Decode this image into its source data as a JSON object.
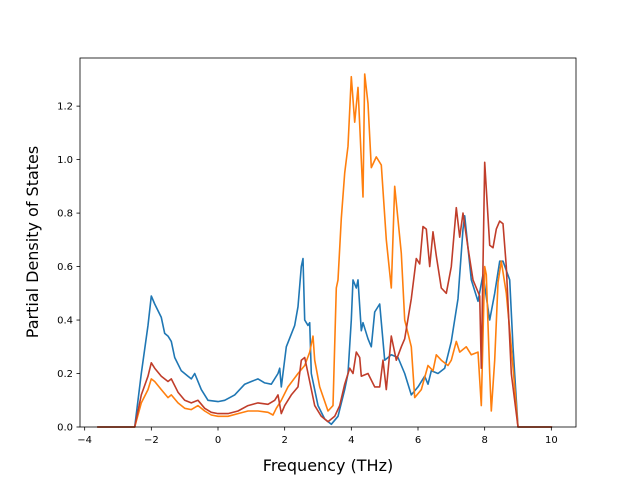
{
  "chart_data": {
    "type": "line",
    "title": "",
    "xlabel": "Frequency (THz)",
    "ylabel": "Partial Density of States",
    "xlim": [
      -4.14,
      10.74
    ],
    "ylim": [
      0.0,
      1.38
    ],
    "x_ticks": [
      -4,
      -2,
      0,
      2,
      4,
      6,
      8,
      10
    ],
    "y_ticks": [
      0.0,
      0.2,
      0.4,
      0.6,
      0.8,
      1.0,
      1.2
    ],
    "x_tick_labels": [
      "−4",
      "−2",
      "0",
      "2",
      "4",
      "6",
      "8",
      "10"
    ],
    "y_tick_labels": [
      "0.0",
      "0.2",
      "0.4",
      "0.6",
      "0.8",
      "1.0",
      "1.2"
    ],
    "grid": false,
    "legend": "none",
    "series": [
      {
        "color": "#1f77b4",
        "points": [
          [
            -3.6,
            0.0
          ],
          [
            -2.5,
            0.0
          ],
          [
            -2.3,
            0.2
          ],
          [
            -2.1,
            0.38
          ],
          [
            -2.0,
            0.49
          ],
          [
            -1.9,
            0.46
          ],
          [
            -1.7,
            0.41
          ],
          [
            -1.6,
            0.35
          ],
          [
            -1.5,
            0.34
          ],
          [
            -1.4,
            0.32
          ],
          [
            -1.3,
            0.26
          ],
          [
            -1.1,
            0.21
          ],
          [
            -0.9,
            0.19
          ],
          [
            -0.8,
            0.18
          ],
          [
            -0.7,
            0.2
          ],
          [
            -0.5,
            0.14
          ],
          [
            -0.3,
            0.1
          ],
          [
            0.0,
            0.095
          ],
          [
            0.2,
            0.1
          ],
          [
            0.5,
            0.12
          ],
          [
            0.8,
            0.16
          ],
          [
            1.0,
            0.17
          ],
          [
            1.2,
            0.18
          ],
          [
            1.4,
            0.165
          ],
          [
            1.6,
            0.16
          ],
          [
            1.8,
            0.2
          ],
          [
            1.85,
            0.22
          ],
          [
            1.9,
            0.15
          ],
          [
            2.05,
            0.3
          ],
          [
            2.3,
            0.38
          ],
          [
            2.4,
            0.45
          ],
          [
            2.5,
            0.6
          ],
          [
            2.55,
            0.63
          ],
          [
            2.6,
            0.4
          ],
          [
            2.7,
            0.38
          ],
          [
            2.75,
            0.39
          ],
          [
            2.8,
            0.2
          ],
          [
            3.0,
            0.08
          ],
          [
            3.2,
            0.03
          ],
          [
            3.4,
            0.01
          ],
          [
            3.6,
            0.04
          ],
          [
            3.8,
            0.14
          ],
          [
            3.9,
            0.2
          ],
          [
            4.0,
            0.4
          ],
          [
            4.05,
            0.55
          ],
          [
            4.15,
            0.52
          ],
          [
            4.2,
            0.55
          ],
          [
            4.3,
            0.36
          ],
          [
            4.35,
            0.39
          ],
          [
            4.5,
            0.33
          ],
          [
            4.6,
            0.3
          ],
          [
            4.7,
            0.43
          ],
          [
            4.85,
            0.46
          ],
          [
            5.0,
            0.25
          ],
          [
            5.2,
            0.27
          ],
          [
            5.4,
            0.26
          ],
          [
            5.6,
            0.2
          ],
          [
            5.8,
            0.12
          ],
          [
            6.0,
            0.15
          ],
          [
            6.2,
            0.19
          ],
          [
            6.3,
            0.16
          ],
          [
            6.4,
            0.21
          ],
          [
            6.6,
            0.2
          ],
          [
            6.8,
            0.22
          ],
          [
            7.0,
            0.32
          ],
          [
            7.2,
            0.48
          ],
          [
            7.35,
            0.74
          ],
          [
            7.4,
            0.79
          ],
          [
            7.6,
            0.55
          ],
          [
            7.8,
            0.47
          ],
          [
            7.95,
            0.57
          ],
          [
            8.15,
            0.4
          ],
          [
            8.3,
            0.5
          ],
          [
            8.45,
            0.62
          ],
          [
            8.55,
            0.62
          ],
          [
            8.75,
            0.55
          ],
          [
            8.85,
            0.3
          ],
          [
            9.0,
            0.0
          ],
          [
            10.0,
            0.0
          ]
        ]
      },
      {
        "color": "#ff7f0e",
        "points": [
          [
            -3.6,
            0.0
          ],
          [
            -2.5,
            0.0
          ],
          [
            -2.3,
            0.09
          ],
          [
            -2.1,
            0.14
          ],
          [
            -2.0,
            0.18
          ],
          [
            -1.9,
            0.17
          ],
          [
            -1.7,
            0.14
          ],
          [
            -1.5,
            0.11
          ],
          [
            -1.4,
            0.12
          ],
          [
            -1.2,
            0.09
          ],
          [
            -1.0,
            0.07
          ],
          [
            -0.8,
            0.065
          ],
          [
            -0.6,
            0.08
          ],
          [
            -0.4,
            0.06
          ],
          [
            -0.2,
            0.045
          ],
          [
            0.0,
            0.04
          ],
          [
            0.3,
            0.04
          ],
          [
            0.6,
            0.05
          ],
          [
            0.9,
            0.06
          ],
          [
            1.2,
            0.06
          ],
          [
            1.5,
            0.055
          ],
          [
            1.65,
            0.045
          ],
          [
            1.75,
            0.07
          ],
          [
            1.9,
            0.1
          ],
          [
            2.1,
            0.15
          ],
          [
            2.4,
            0.2
          ],
          [
            2.6,
            0.23
          ],
          [
            2.75,
            0.28
          ],
          [
            2.85,
            0.34
          ],
          [
            2.9,
            0.25
          ],
          [
            3.05,
            0.15
          ],
          [
            3.3,
            0.06
          ],
          [
            3.45,
            0.08
          ],
          [
            3.55,
            0.52
          ],
          [
            3.6,
            0.55
          ],
          [
            3.7,
            0.78
          ],
          [
            3.8,
            0.95
          ],
          [
            3.9,
            1.05
          ],
          [
            4.0,
            1.31
          ],
          [
            4.1,
            1.14
          ],
          [
            4.2,
            1.27
          ],
          [
            4.25,
            1.13
          ],
          [
            4.35,
            0.86
          ],
          [
            4.4,
            1.32
          ],
          [
            4.5,
            1.21
          ],
          [
            4.6,
            0.97
          ],
          [
            4.75,
            1.01
          ],
          [
            4.9,
            0.98
          ],
          [
            5.05,
            0.7
          ],
          [
            5.2,
            0.52
          ],
          [
            5.3,
            0.9
          ],
          [
            5.5,
            0.65
          ],
          [
            5.6,
            0.4
          ],
          [
            5.8,
            0.3
          ],
          [
            5.9,
            0.11
          ],
          [
            6.1,
            0.14
          ],
          [
            6.3,
            0.23
          ],
          [
            6.45,
            0.21
          ],
          [
            6.55,
            0.27
          ],
          [
            6.7,
            0.25
          ],
          [
            6.9,
            0.23
          ],
          [
            7.0,
            0.25
          ],
          [
            7.15,
            0.32
          ],
          [
            7.25,
            0.28
          ],
          [
            7.45,
            0.3
          ],
          [
            7.6,
            0.27
          ],
          [
            7.8,
            0.28
          ],
          [
            7.9,
            0.08
          ],
          [
            8.0,
            0.6
          ],
          [
            8.05,
            0.57
          ],
          [
            8.15,
            0.2
          ],
          [
            8.2,
            0.06
          ],
          [
            8.3,
            0.25
          ],
          [
            8.4,
            0.54
          ],
          [
            8.5,
            0.62
          ],
          [
            8.65,
            0.5
          ],
          [
            8.8,
            0.3
          ],
          [
            9.0,
            0.0
          ],
          [
            10.0,
            0.0
          ]
        ]
      },
      {
        "color": "#c03d2a",
        "points": [
          [
            -3.6,
            0.0
          ],
          [
            -2.5,
            0.0
          ],
          [
            -2.3,
            0.12
          ],
          [
            -2.1,
            0.19
          ],
          [
            -2.0,
            0.24
          ],
          [
            -1.9,
            0.22
          ],
          [
            -1.7,
            0.19
          ],
          [
            -1.5,
            0.17
          ],
          [
            -1.4,
            0.18
          ],
          [
            -1.2,
            0.13
          ],
          [
            -1.0,
            0.1
          ],
          [
            -0.8,
            0.09
          ],
          [
            -0.6,
            0.1
          ],
          [
            -0.4,
            0.07
          ],
          [
            -0.2,
            0.055
          ],
          [
            0.0,
            0.05
          ],
          [
            0.3,
            0.05
          ],
          [
            0.6,
            0.06
          ],
          [
            0.9,
            0.08
          ],
          [
            1.2,
            0.09
          ],
          [
            1.5,
            0.085
          ],
          [
            1.7,
            0.1
          ],
          [
            1.8,
            0.12
          ],
          [
            1.9,
            0.05
          ],
          [
            2.0,
            0.08
          ],
          [
            2.2,
            0.12
          ],
          [
            2.4,
            0.15
          ],
          [
            2.5,
            0.25
          ],
          [
            2.6,
            0.26
          ],
          [
            2.75,
            0.17
          ],
          [
            2.9,
            0.08
          ],
          [
            3.1,
            0.04
          ],
          [
            3.3,
            0.02
          ],
          [
            3.5,
            0.04
          ],
          [
            3.65,
            0.08
          ],
          [
            3.8,
            0.16
          ],
          [
            3.95,
            0.22
          ],
          [
            4.05,
            0.2
          ],
          [
            4.15,
            0.28
          ],
          [
            4.25,
            0.26
          ],
          [
            4.3,
            0.19
          ],
          [
            4.5,
            0.2
          ],
          [
            4.7,
            0.15
          ],
          [
            4.85,
            0.15
          ],
          [
            4.95,
            0.25
          ],
          [
            5.05,
            0.14
          ],
          [
            5.2,
            0.34
          ],
          [
            5.35,
            0.25
          ],
          [
            5.5,
            0.3
          ],
          [
            5.6,
            0.33
          ],
          [
            5.8,
            0.48
          ],
          [
            5.95,
            0.63
          ],
          [
            6.05,
            0.61
          ],
          [
            6.15,
            0.75
          ],
          [
            6.25,
            0.74
          ],
          [
            6.35,
            0.6
          ],
          [
            6.45,
            0.73
          ],
          [
            6.55,
            0.64
          ],
          [
            6.7,
            0.52
          ],
          [
            6.85,
            0.5
          ],
          [
            7.0,
            0.6
          ],
          [
            7.15,
            0.82
          ],
          [
            7.25,
            0.71
          ],
          [
            7.35,
            0.8
          ],
          [
            7.5,
            0.67
          ],
          [
            7.65,
            0.55
          ],
          [
            7.85,
            0.49
          ],
          [
            7.9,
            0.22
          ],
          [
            8.0,
            0.99
          ],
          [
            8.15,
            0.68
          ],
          [
            8.25,
            0.67
          ],
          [
            8.35,
            0.74
          ],
          [
            8.45,
            0.77
          ],
          [
            8.55,
            0.76
          ],
          [
            8.65,
            0.6
          ],
          [
            8.8,
            0.2
          ],
          [
            9.0,
            0.0
          ],
          [
            10.0,
            0.0
          ]
        ]
      }
    ]
  }
}
